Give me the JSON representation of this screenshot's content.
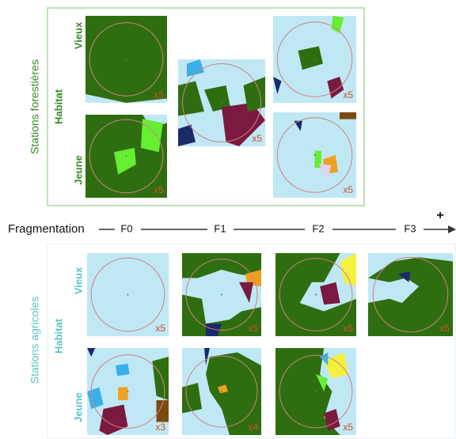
{
  "axis": {
    "label": "Fragmentation",
    "levels": [
      "F0",
      "F1",
      "F2",
      "F3"
    ],
    "more": "+"
  },
  "panels": [
    {
      "title": "Stations forestières",
      "habitat": "Habitat",
      "rows": [
        "Vieux",
        "Jeune"
      ],
      "tiles": [
        "x5",
        "x5",
        "x5",
        "x5",
        "x5"
      ]
    },
    {
      "title": "Stations agricoles",
      "habitat": "Habitat",
      "rows": [
        "Vieux",
        "Jeune"
      ],
      "tiles": [
        "x5",
        "x5",
        "x5",
        "x5",
        "x3",
        "x4",
        "x5"
      ]
    }
  ]
}
